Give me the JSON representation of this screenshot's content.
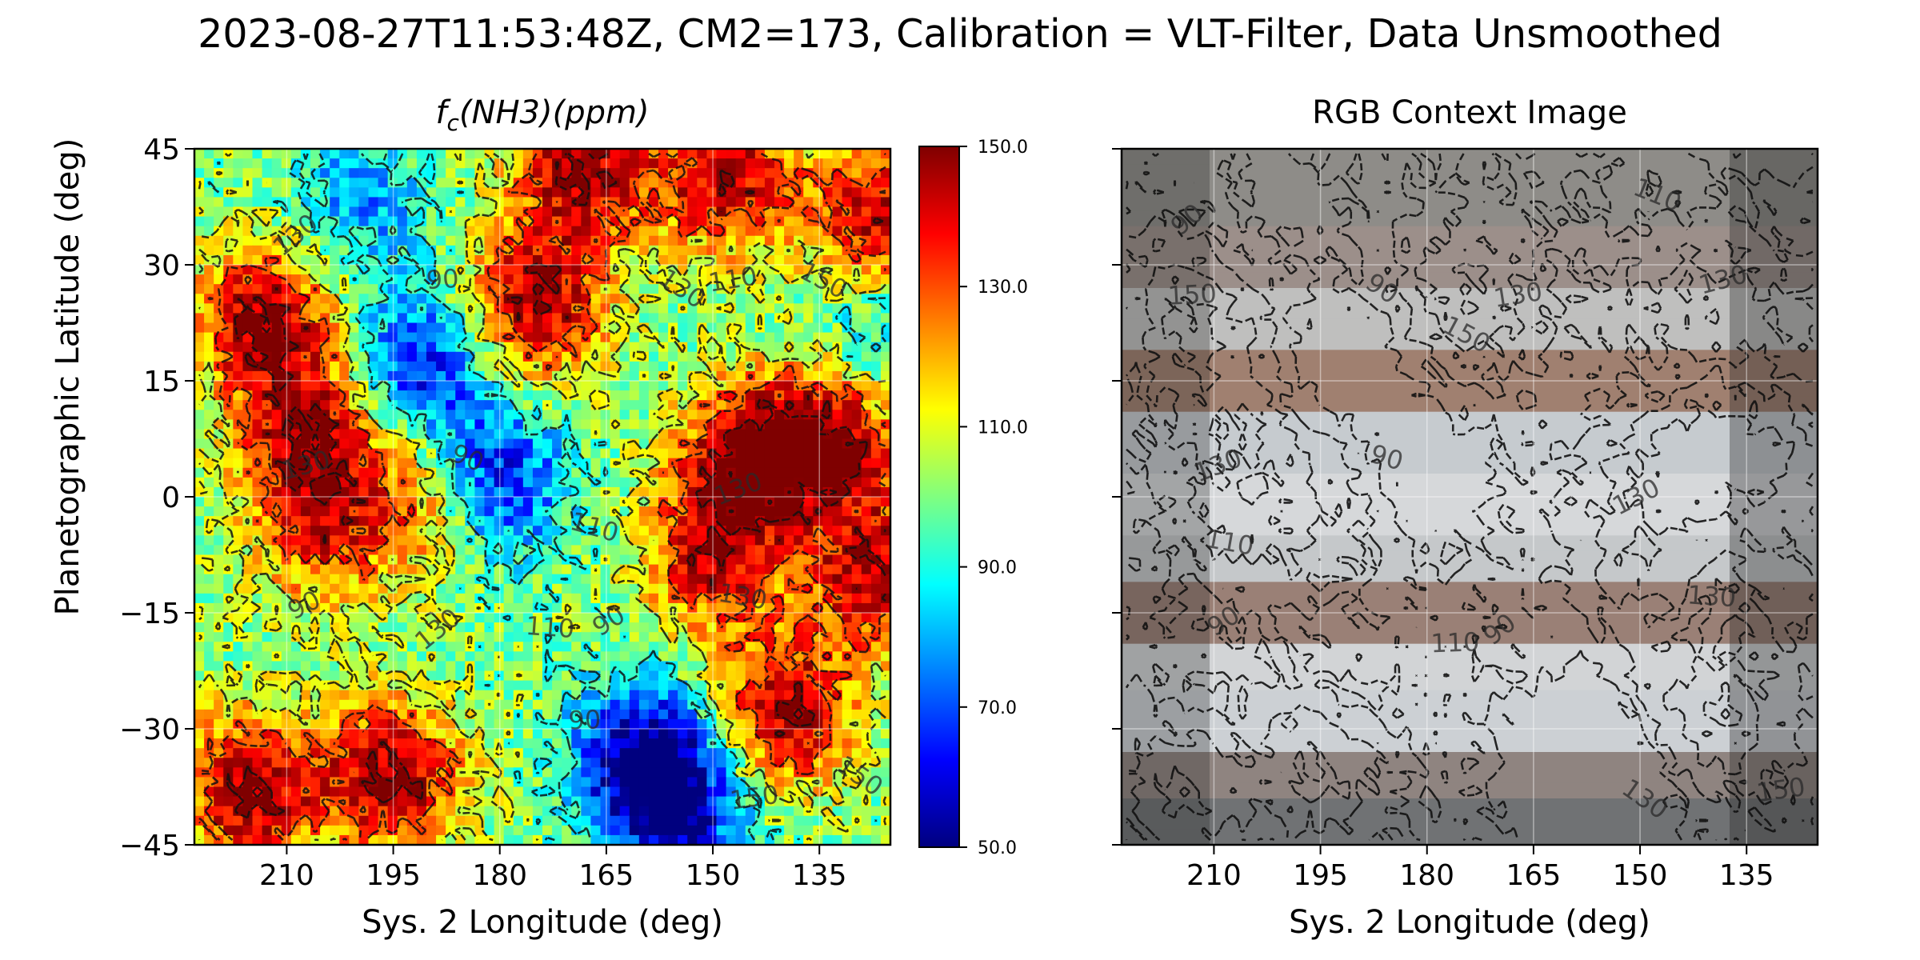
{
  "figure": {
    "title": "2023-08-27T11:53:48Z, CM2=173, Calibration = VLT-Filter, Data Unsmoothed"
  },
  "colors": {
    "jet": [
      "#00007f",
      "#0000ff",
      "#007fff",
      "#00ffff",
      "#7fff7f",
      "#ffff00",
      "#ff7f00",
      "#ff0000",
      "#7f0000"
    ],
    "contour": "#111111"
  },
  "chart_data": [
    {
      "type": "heatmap",
      "title_base": "f",
      "title_sub": "c",
      "title_rest": "(NH3)(ppm)",
      "xlabel": "Sys. 2 Longitude (deg)",
      "ylabel": "Planetographic Latitude (deg)",
      "xlim": [
        223,
        125
      ],
      "ylim": [
        -45,
        45
      ],
      "xticks": [
        "210",
        "195",
        "180",
        "165",
        "150",
        "135"
      ],
      "xtick_values": [
        210,
        195,
        180,
        165,
        150,
        135
      ],
      "yticks": [
        "45",
        "30",
        "15",
        "0",
        "−15",
        "−30",
        "−45"
      ],
      "ytick_values": [
        45,
        30,
        15,
        0,
        -15,
        -30,
        -45
      ],
      "colorbar": {
        "range": [
          50,
          150
        ],
        "ticks": [
          "150.0",
          "130.0",
          "110.0",
          "90.0",
          "70.0",
          "50.0"
        ],
        "tick_values": [
          150,
          130,
          110,
          90,
          70,
          50
        ]
      },
      "contour_levels": [
        90,
        110,
        130,
        150
      ],
      "contour_labels": [
        {
          "text": "130",
          "lon": 208,
          "lat": 33
        },
        {
          "text": "90",
          "lon": 188,
          "lat": 27
        },
        {
          "text": "130",
          "lon": 155,
          "lat": 26
        },
        {
          "text": "110",
          "lon": 147,
          "lat": 27
        },
        {
          "text": "150",
          "lon": 135,
          "lat": 27
        },
        {
          "text": "130",
          "lon": 207,
          "lat": 3
        },
        {
          "text": "90",
          "lon": 185,
          "lat": 4
        },
        {
          "text": "130",
          "lon": 146,
          "lat": 0
        },
        {
          "text": "110",
          "lon": 167,
          "lat": -5
        },
        {
          "text": "90",
          "lon": 207,
          "lat": -15
        },
        {
          "text": "130",
          "lon": 146,
          "lat": -14
        },
        {
          "text": "90",
          "lon": 164,
          "lat": -17
        },
        {
          "text": "110",
          "lon": 173,
          "lat": -18
        },
        {
          "text": "130",
          "lon": 188,
          "lat": -18
        },
        {
          "text": "90",
          "lon": 168,
          "lat": -30
        },
        {
          "text": "150",
          "lon": 130,
          "lat": -37
        },
        {
          "text": "150",
          "lon": 144,
          "lat": -40
        }
      ],
      "features": {
        "high": [
          {
            "lon": 213,
            "lat": 23,
            "value": 150
          },
          {
            "lon": 207,
            "lat": 8,
            "value": 145
          },
          {
            "lon": 175,
            "lat": 25,
            "value": 150
          },
          {
            "lon": 168,
            "lat": 43,
            "value": 148
          },
          {
            "lon": 148,
            "lat": 41,
            "value": 145
          },
          {
            "lon": 127,
            "lat": 36,
            "value": 145
          },
          {
            "lon": 145,
            "lat": 5,
            "value": 150
          },
          {
            "lon": 133,
            "lat": 8,
            "value": 150
          },
          {
            "lon": 150,
            "lat": -8,
            "value": 140
          },
          {
            "lon": 195,
            "lat": -36,
            "value": 150
          },
          {
            "lon": 215,
            "lat": -38,
            "value": 150
          },
          {
            "lon": 140,
            "lat": -28,
            "value": 150
          },
          {
            "lon": 127,
            "lat": -10,
            "value": 145
          },
          {
            "lon": 205,
            "lat": -5,
            "value": 130
          },
          {
            "lon": 190,
            "lat": 0,
            "value": 132
          }
        ],
        "low": [
          {
            "lon": 191,
            "lat": 17,
            "value": 62
          },
          {
            "lon": 181,
            "lat": 2,
            "value": 55
          },
          {
            "lon": 160,
            "lat": -33,
            "value": 60
          },
          {
            "lon": 155,
            "lat": -40,
            "value": 55
          },
          {
            "lon": 200,
            "lat": 38,
            "value": 78
          },
          {
            "lon": 127,
            "lat": 20,
            "value": 78
          }
        ],
        "background": 100
      }
    },
    {
      "type": "image",
      "title": "RGB Context Image",
      "xlabel": "Sys. 2 Longitude (deg)",
      "xlim": [
        223,
        125
      ],
      "ylim": [
        -45,
        45
      ],
      "xticks": [
        "210",
        "195",
        "180",
        "165",
        "150",
        "135"
      ],
      "xtick_values": [
        210,
        195,
        180,
        165,
        150,
        135
      ],
      "ytick_values": [
        45,
        30,
        15,
        0,
        -15,
        -30,
        -45
      ],
      "bands": [
        {
          "lat": 40,
          "color": "#8e8c88"
        },
        {
          "lat": 32,
          "color": "#9c8f8a"
        },
        {
          "lat": 22,
          "color": "#bfbfbe"
        },
        {
          "lat": 15,
          "color": "#a08070"
        },
        {
          "lat": 8,
          "color": "#c6cbcf"
        },
        {
          "lat": 0,
          "color": "#d6d8da"
        },
        {
          "lat": -8,
          "color": "#c5c8ca"
        },
        {
          "lat": -15,
          "color": "#9a8076"
        },
        {
          "lat": -22,
          "color": "#d2d4d6"
        },
        {
          "lat": -28,
          "color": "#ccd0d4"
        },
        {
          "lat": -36,
          "color": "#8f8480"
        },
        {
          "lat": -43,
          "color": "#707274"
        }
      ],
      "contour_labels": [
        {
          "text": "90",
          "lon": 213,
          "lat": 35
        },
        {
          "text": "150",
          "lon": 213,
          "lat": 25
        },
        {
          "text": "90",
          "lon": 187,
          "lat": 26
        },
        {
          "text": "130",
          "lon": 167,
          "lat": 25
        },
        {
          "text": "150",
          "lon": 175,
          "lat": 20
        },
        {
          "text": "130",
          "lon": 138,
          "lat": 27
        },
        {
          "text": "110",
          "lon": 148,
          "lat": 38
        },
        {
          "text": "130",
          "lon": 209,
          "lat": 3
        },
        {
          "text": "90",
          "lon": 186,
          "lat": 4
        },
        {
          "text": "130",
          "lon": 150,
          "lat": -1
        },
        {
          "text": "110",
          "lon": 208,
          "lat": -7
        },
        {
          "text": "90",
          "lon": 208,
          "lat": -17
        },
        {
          "text": "130",
          "lon": 140,
          "lat": -14
        },
        {
          "text": "90",
          "lon": 169,
          "lat": -18
        },
        {
          "text": "110",
          "lon": 176,
          "lat": -20
        },
        {
          "text": "130",
          "lon": 150,
          "lat": -40
        },
        {
          "text": "150",
          "lon": 130,
          "lat": -39
        }
      ]
    }
  ]
}
